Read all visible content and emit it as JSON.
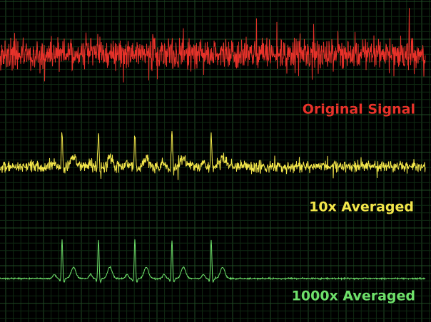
{
  "labels": {
    "original": "Original Signal",
    "averaged_10x": "10x Averaged",
    "averaged_1000x": "1000x Averaged"
  }
}
